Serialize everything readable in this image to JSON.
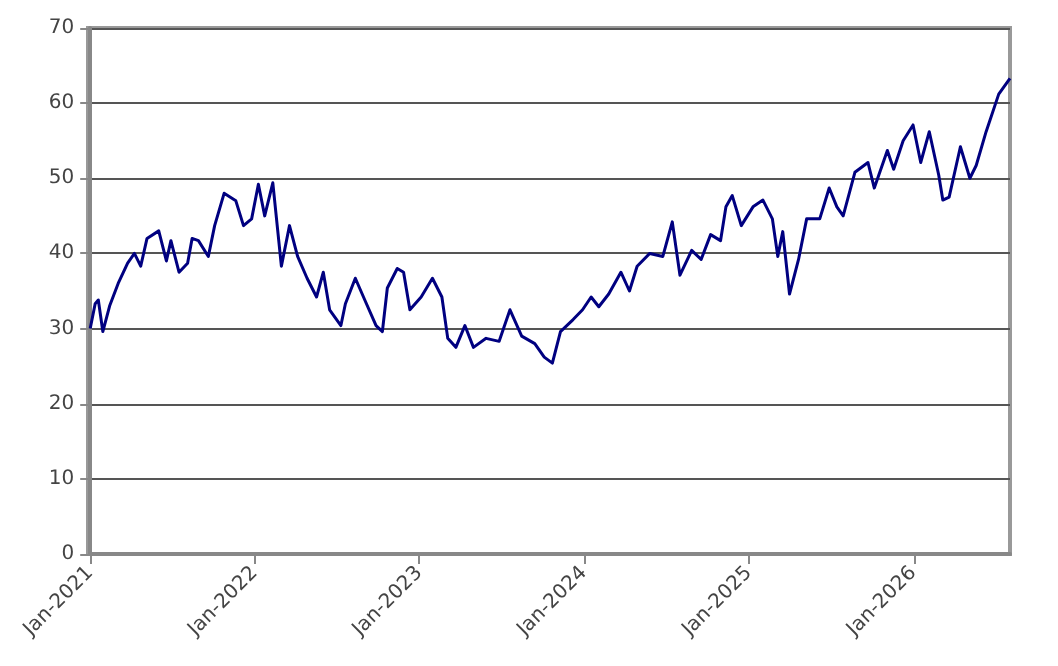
{
  "chart_data": {
    "type": "line",
    "x": [
      "2021-01-01",
      "2021-01-12",
      "2021-01-19",
      "2021-01-29",
      "2021-02-13",
      "2021-03-04",
      "2021-03-25",
      "2021-04-09",
      "2021-04-23",
      "2021-05-07",
      "2021-06-02",
      "2021-06-19",
      "2021-06-29",
      "2021-07-17",
      "2021-08-05",
      "2021-08-15",
      "2021-08-29",
      "2021-09-20",
      "2021-10-04",
      "2021-10-25",
      "2021-11-20",
      "2021-12-07",
      "2021-12-25",
      "2022-01-09",
      "2022-01-23",
      "2022-02-10",
      "2022-03-01",
      "2022-03-19",
      "2022-04-06",
      "2022-04-27",
      "2022-05-18",
      "2022-06-02",
      "2022-06-16",
      "2022-07-11",
      "2022-07-21",
      "2022-08-12",
      "2022-09-02",
      "2022-09-27",
      "2022-10-11",
      "2022-10-22",
      "2022-11-13",
      "2022-11-27",
      "2022-12-11",
      "2023-01-05",
      "2023-01-30",
      "2023-02-20",
      "2023-03-05",
      "2023-03-23",
      "2023-04-12",
      "2023-05-01",
      "2023-05-29",
      "2023-06-27",
      "2023-07-21",
      "2023-08-16",
      "2023-09-14",
      "2023-10-05",
      "2023-10-23",
      "2023-11-10",
      "2023-12-08",
      "2023-12-29",
      "2024-01-17",
      "2024-02-03",
      "2024-02-25",
      "2024-03-23",
      "2024-04-11",
      "2024-04-28",
      "2024-05-26",
      "2024-06-24",
      "2024-07-15",
      "2024-08-01",
      "2024-08-27",
      "2024-09-17",
      "2024-10-08",
      "2024-10-30",
      "2024-11-11",
      "2024-11-25",
      "2024-12-15",
      "2025-01-10",
      "2025-02-01",
      "2025-02-22",
      "2025-03-06",
      "2025-03-17",
      "2025-04-01",
      "2025-04-21",
      "2025-05-09",
      "2025-06-07",
      "2025-06-28",
      "2025-07-15",
      "2025-07-29",
      "2025-08-24",
      "2025-09-22",
      "2025-10-06",
      "2025-11-04",
      "2025-11-18",
      "2025-12-09",
      "2025-12-31",
      "2026-01-17",
      "2026-02-05",
      "2026-02-26",
      "2026-03-07",
      "2026-03-21",
      "2026-04-15",
      "2026-05-06",
      "2026-05-20",
      "2026-06-11",
      "2026-07-09",
      "2026-08-03"
    ],
    "series": [
      {
        "color": "#000080",
        "values": [
          30,
          33.3,
          33.8,
          29.6,
          33,
          36,
          38.7,
          40,
          38.3,
          42,
          43,
          39,
          41.7,
          37.5,
          38.7,
          42,
          41.7,
          39.6,
          43.7,
          48,
          47,
          43.7,
          44.6,
          49.2,
          45,
          49.4,
          38.3,
          43.7,
          39.6,
          36.7,
          34.2,
          37.5,
          32.5,
          30.4,
          33.3,
          36.7,
          33.8,
          30.4,
          29.6,
          35.4,
          38,
          37.5,
          32.5,
          34.2,
          36.7,
          34.2,
          28.7,
          27.5,
          30.4,
          27.5,
          28.7,
          28.3,
          32.5,
          29,
          28,
          26.2,
          25.4,
          29.6,
          31.2,
          32.5,
          34.2,
          32.9,
          34.6,
          37.5,
          35,
          38.3,
          40,
          39.6,
          44.2,
          37.1,
          40.4,
          39.2,
          42.5,
          41.7,
          46.2,
          47.7,
          43.7,
          46.2,
          47.1,
          44.6,
          39.6,
          42.9,
          34.6,
          39.2,
          44.6,
          44.6,
          48.7,
          46.2,
          45,
          50.8,
          52.1,
          48.7,
          53.7,
          51.2,
          55,
          57.1,
          52.1,
          56.2,
          50.4,
          47.1,
          47.5,
          54.2,
          50,
          51.7,
          56.2,
          61.2,
          63.3
        ]
      }
    ],
    "xlim": [
      "2021-01-01",
      "2026-08-03"
    ],
    "xticks": [
      {
        "value": "2021-01-01",
        "label": "Jan-2021"
      },
      {
        "value": "2022-01-01",
        "label": "Jan-2022"
      },
      {
        "value": "2023-01-01",
        "label": "Jan-2023"
      },
      {
        "value": "2024-01-01",
        "label": "Jan-2024"
      },
      {
        "value": "2025-01-01",
        "label": "Jan-2025"
      },
      {
        "value": "2026-01-01",
        "label": "Jan-2026"
      }
    ],
    "ylim": [
      0,
      70
    ],
    "yticks": [
      0,
      10,
      20,
      30,
      40,
      50,
      60,
      70
    ],
    "grid": "y",
    "marker": "none",
    "line_style": "solid"
  }
}
